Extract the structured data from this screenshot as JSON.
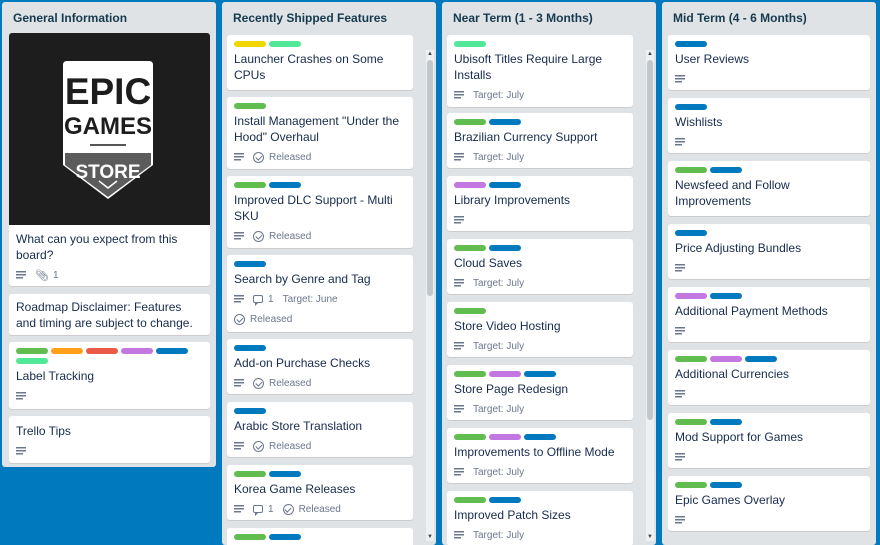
{
  "lists": {
    "general": {
      "title": "General Information",
      "cards": [
        {
          "title": "What can you expect from this board?",
          "attachments": "1"
        },
        {
          "title": "Roadmap Disclaimer: Features and timing are subject to change."
        },
        {
          "title": "Label Tracking"
        },
        {
          "title": "Trello Tips"
        }
      ],
      "logo": {
        "line1": "EPIC",
        "line2": "GAMES",
        "line3": "STORE"
      }
    },
    "shipped": {
      "title": "Recently Shipped Features",
      "status": "Released",
      "cards": [
        {
          "title": "Launcher Crashes on Some CPUs"
        },
        {
          "title": "Install Management \"Under the Hood\" Overhaul"
        },
        {
          "title": "Improved DLC Support - Multi SKU"
        },
        {
          "title": "Search by Genre and Tag",
          "comments": "1",
          "target": "Target: June"
        },
        {
          "title": "Add-on Purchase Checks"
        },
        {
          "title": "Arabic Store Translation"
        },
        {
          "title": "Korea Game Releases",
          "comments": "1"
        }
      ]
    },
    "near": {
      "title": "Near Term (1 - 3 Months)",
      "target": "Target: July",
      "cards": [
        {
          "title": "Ubisoft Titles Require Large Installs"
        },
        {
          "title": "Brazilian Currency Support"
        },
        {
          "title": "Library Improvements"
        },
        {
          "title": "Cloud Saves"
        },
        {
          "title": "Store Video Hosting"
        },
        {
          "title": "Store Page Redesign"
        },
        {
          "title": "Improvements to Offline Mode"
        },
        {
          "title": "Improved Patch Sizes"
        }
      ]
    },
    "mid": {
      "title": "Mid Term (4 - 6 Months)",
      "cards": [
        {
          "title": "User Reviews"
        },
        {
          "title": "Wishlists"
        },
        {
          "title": "Newsfeed and Follow Improvements"
        },
        {
          "title": "Price Adjusting Bundles"
        },
        {
          "title": "Additional Payment Methods"
        },
        {
          "title": "Additional Currencies"
        },
        {
          "title": "Mod Support for Games"
        },
        {
          "title": "Epic Games Overlay"
        }
      ]
    }
  },
  "colors": {
    "board_background": "#0079bf",
    "list_background": "#dfe3e6",
    "label_green": "#61bd4f",
    "label_yellow": "#f2d600",
    "label_orange": "#ff9f1a",
    "label_red": "#eb5a46",
    "label_purple": "#c377e0",
    "label_blue": "#0079bf",
    "label_mint": "#51e898"
  },
  "icons": [
    "description-icon",
    "attachment-icon",
    "checklist-icon",
    "comment-icon"
  ]
}
